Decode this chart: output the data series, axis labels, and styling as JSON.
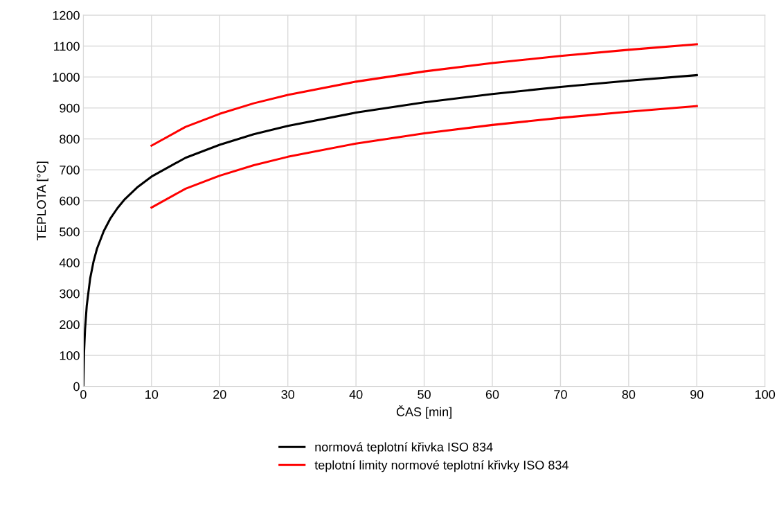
{
  "chart_data": {
    "type": "line",
    "xlabel": "ČAS [min]",
    "ylabel": "TEPLOTA [°C]",
    "x": [
      0,
      0.1,
      0.25,
      0.5,
      1,
      1.5,
      2,
      3,
      4,
      5,
      6,
      8,
      10,
      15,
      20,
      25,
      30,
      40,
      50,
      60,
      70,
      80,
      90
    ],
    "series": [
      {
        "name": "normová teplotní křivka ISO 834",
        "color": "#000000",
        "values": [
          0,
          108,
          185,
          261,
          349,
          404,
          445,
          502,
          544,
          576,
          603,
          645,
          678,
          739,
          781,
          815,
          842,
          885,
          918,
          945,
          968,
          988,
          1006
        ]
      },
      {
        "name": "teplotní limity normové teplotní křivky ISO 834",
        "color": "#ff0000",
        "x": [
          10,
          15,
          20,
          25,
          30,
          40,
          50,
          60,
          70,
          80,
          90
        ],
        "values": [
          778,
          839,
          881,
          915,
          942,
          985,
          1018,
          1045,
          1068,
          1088,
          1106
        ]
      },
      {
        "color": "#ff0000",
        "x": [
          10,
          15,
          20,
          25,
          30,
          40,
          50,
          60,
          70,
          80,
          90
        ],
        "values": [
          578,
          639,
          681,
          715,
          742,
          785,
          818,
          845,
          868,
          888,
          906
        ]
      }
    ],
    "xlim": [
      0,
      100
    ],
    "xticks": [
      0,
      10,
      20,
      30,
      40,
      50,
      60,
      70,
      80,
      90,
      100
    ],
    "ylim": [
      0,
      1200
    ],
    "yticks": [
      0,
      100,
      200,
      300,
      400,
      500,
      600,
      700,
      800,
      900,
      1000,
      1100,
      1200
    ],
    "grid": true,
    "legend": "bottom",
    "marker": "none",
    "line_style": "solid"
  }
}
